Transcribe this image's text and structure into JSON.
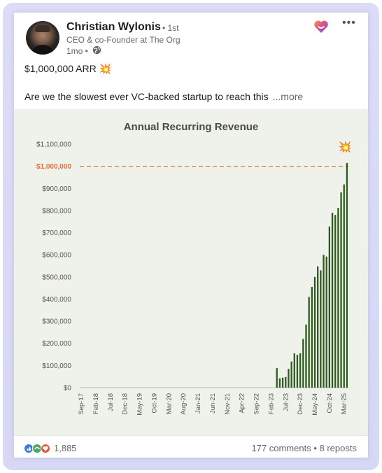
{
  "author": {
    "name": "Christian Wylonis",
    "degree": "• 1st",
    "headline": "CEO & co-Founder at The Org",
    "timestamp": "1mo •"
  },
  "icons": {
    "reaction_badge": "heart-icon",
    "menu": "more-icon",
    "visibility": "globe-icon"
  },
  "post": {
    "line1": "$1,000,000 ARR 💥",
    "line2": "Are we the slowest ever VC-backed startup to reach this",
    "see_more": "...more"
  },
  "footer": {
    "reaction_count": "1,885",
    "comments": "177 comments",
    "separator": "•",
    "reposts": "8 reposts"
  },
  "chart_data": {
    "type": "bar",
    "title": "Annual Recurring Revenue",
    "ylim": [
      0,
      1100000
    ],
    "yticks": [
      "$0",
      "$100,000",
      "$200,000",
      "$300,000",
      "$400,000",
      "$500,000",
      "$600,000",
      "$700,000",
      "$800,000",
      "$900,000",
      "$1,000,000",
      "$1,100,000"
    ],
    "xticks": [
      "Sep-17",
      "Feb-18",
      "Jul-18",
      "Dec-18",
      "May-19",
      "Oct-19",
      "Mar-20",
      "Aug-20",
      "Jan-21",
      "Jun-21",
      "Nov-21",
      "Apr-22",
      "Sep-22",
      "Feb-23",
      "Jul-23",
      "Dec-23",
      "May-24",
      "Oct-24",
      "Mar-25"
    ],
    "target": {
      "label": "$1,000,000",
      "value": 1000000,
      "color": "#e8703a"
    },
    "bar_color": "#2f5a1e",
    "marker": "💥",
    "bars": [
      {
        "month_index": 0,
        "value": 0
      },
      {
        "month_index": 1,
        "value": 0
      },
      {
        "month_index": 2,
        "value": 0
      },
      {
        "month_index": 3,
        "value": 0
      },
      {
        "month_index": 4,
        "value": 0
      },
      {
        "month_index": 5,
        "value": 0
      },
      {
        "month_index": 6,
        "value": 0
      },
      {
        "month_index": 7,
        "value": 0
      },
      {
        "month_index": 8,
        "value": 0
      },
      {
        "month_index": 9,
        "value": 0
      },
      {
        "month_index": 10,
        "value": 0
      },
      {
        "month_index": 11,
        "value": 0
      },
      {
        "month_index": 12,
        "value": 0
      },
      {
        "month_index": 13,
        "value": 0
      },
      {
        "month_index": 14,
        "value": 0
      },
      {
        "month_index": 15,
        "value": 0
      },
      {
        "month_index": 16,
        "value": 0
      },
      {
        "month_index": 17,
        "value": 0
      },
      {
        "month_index": 18,
        "value": 0
      },
      {
        "month_index": 19,
        "value": 0
      },
      {
        "month_index": 20,
        "value": 0
      },
      {
        "month_index": 21,
        "value": 0
      },
      {
        "month_index": 22,
        "value": 0
      },
      {
        "month_index": 23,
        "value": 0
      },
      {
        "month_index": 24,
        "value": 0
      },
      {
        "month_index": 25,
        "value": 0
      },
      {
        "month_index": 26,
        "value": 0
      },
      {
        "month_index": 27,
        "value": 0
      },
      {
        "month_index": 28,
        "value": 0
      },
      {
        "month_index": 29,
        "value": 0
      },
      {
        "month_index": 30,
        "value": 0
      },
      {
        "month_index": 31,
        "value": 0
      },
      {
        "month_index": 32,
        "value": 0
      },
      {
        "month_index": 33,
        "value": 0
      },
      {
        "month_index": 34,
        "value": 0
      },
      {
        "month_index": 35,
        "value": 0
      },
      {
        "month_index": 36,
        "value": 0
      },
      {
        "month_index": 37,
        "value": 0
      },
      {
        "month_index": 38,
        "value": 0
      },
      {
        "month_index": 39,
        "value": 0
      },
      {
        "month_index": 40,
        "value": 0
      },
      {
        "month_index": 41,
        "value": 0
      },
      {
        "month_index": 42,
        "value": 0
      },
      {
        "month_index": 43,
        "value": 0
      },
      {
        "month_index": 44,
        "value": 0
      },
      {
        "month_index": 45,
        "value": 0
      },
      {
        "month_index": 46,
        "value": 0
      },
      {
        "month_index": 47,
        "value": 0
      },
      {
        "month_index": 48,
        "value": 0
      },
      {
        "month_index": 49,
        "value": 0
      },
      {
        "month_index": 50,
        "value": 0
      },
      {
        "month_index": 51,
        "value": 0
      },
      {
        "month_index": 52,
        "value": 0
      },
      {
        "month_index": 53,
        "value": 0
      },
      {
        "month_index": 54,
        "value": 0
      },
      {
        "month_index": 55,
        "value": 0
      },
      {
        "month_index": 56,
        "value": 0
      },
      {
        "month_index": 57,
        "value": 0
      },
      {
        "month_index": 58,
        "value": 0
      },
      {
        "month_index": 59,
        "value": 0
      },
      {
        "month_index": 60,
        "value": 0
      },
      {
        "month_index": 61,
        "value": 0
      },
      {
        "month_index": 62,
        "value": 0
      },
      {
        "month_index": 63,
        "value": 0
      },
      {
        "month_index": 64,
        "value": 0
      },
      {
        "month_index": 65,
        "value": 0
      },
      {
        "month_index": 66,
        "value": 0
      },
      {
        "month_index": 67,
        "value": 88000
      },
      {
        "month_index": 68,
        "value": 42000
      },
      {
        "month_index": 69,
        "value": 45000
      },
      {
        "month_index": 70,
        "value": 48000
      },
      {
        "month_index": 71,
        "value": 85000
      },
      {
        "month_index": 72,
        "value": 118000
      },
      {
        "month_index": 73,
        "value": 155000
      },
      {
        "month_index": 74,
        "value": 148000
      },
      {
        "month_index": 75,
        "value": 155000
      },
      {
        "month_index": 76,
        "value": 220000
      },
      {
        "month_index": 77,
        "value": 285000
      },
      {
        "month_index": 78,
        "value": 410000
      },
      {
        "month_index": 79,
        "value": 455000
      },
      {
        "month_index": 80,
        "value": 500000
      },
      {
        "month_index": 81,
        "value": 548000
      },
      {
        "month_index": 82,
        "value": 530000
      },
      {
        "month_index": 83,
        "value": 600000
      },
      {
        "month_index": 84,
        "value": 592000
      },
      {
        "month_index": 85,
        "value": 728000
      },
      {
        "month_index": 86,
        "value": 790000
      },
      {
        "month_index": 87,
        "value": 780000
      },
      {
        "month_index": 88,
        "value": 812000
      },
      {
        "month_index": 89,
        "value": 882000
      },
      {
        "month_index": 90,
        "value": 918000
      },
      {
        "month_index": 91,
        "value": 1015000
      }
    ]
  }
}
